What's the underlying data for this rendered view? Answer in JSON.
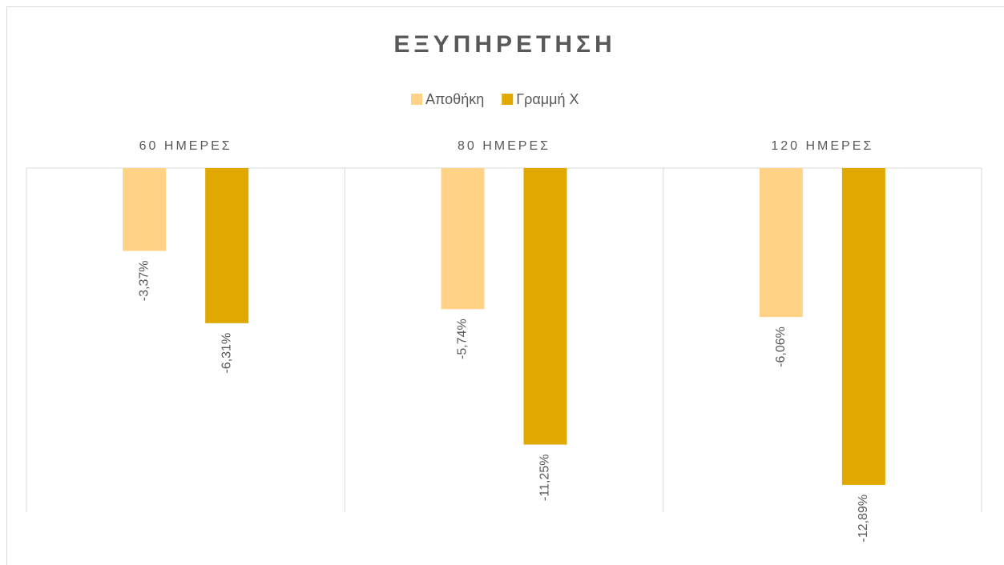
{
  "chart_data": {
    "type": "bar",
    "title": "ΕΞΥΠΗΡΕΤΗΣΗ",
    "categories": [
      "60 ΗΜΕΡΕΣ",
      "80 ΗΜΕΡΕΣ",
      "120 ΗΜΕΡΕΣ"
    ],
    "series": [
      {
        "name": "Αποθήκη",
        "color": "#ffd285",
        "values": [
          -3.37,
          -5.74,
          -6.06
        ],
        "value_labels": [
          "-3,37%",
          "-5,74%",
          "-6,06%"
        ]
      },
      {
        "name": "Γραμμή Χ",
        "color": "#e0a800",
        "values": [
          -6.31,
          -11.25,
          -12.89
        ],
        "value_labels": [
          "-6,31%",
          "-11,25%",
          "-12,89%"
        ]
      }
    ],
    "ylim": [
      -14,
      0
    ],
    "legend": "top"
  }
}
